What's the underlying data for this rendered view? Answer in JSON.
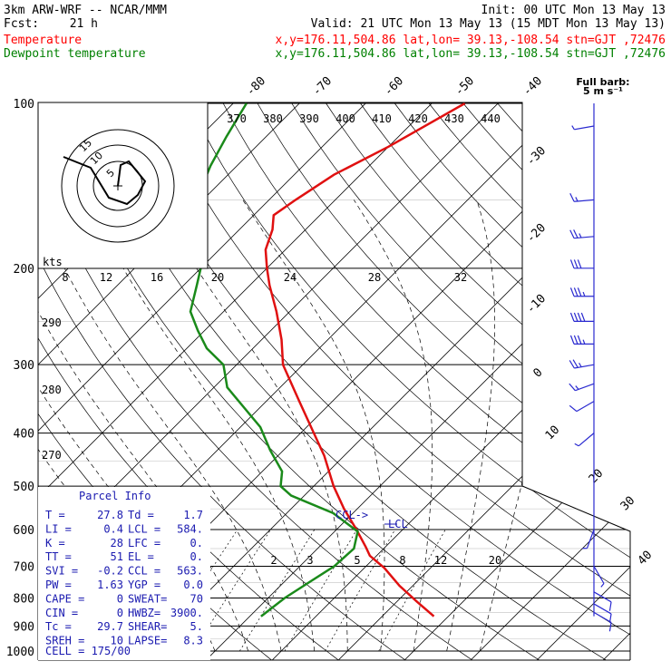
{
  "header": {
    "model": "3km ARW-WRF -- NCAR/MMM",
    "init": "Init: 00 UTC Mon 13 May 13",
    "fcst_label": "Fcst:",
    "fcst_value": "21 h",
    "valid": "Valid: 21 UTC Mon 13 May 13 (15 MDT Mon 13 May 13)",
    "series_lines": [
      {
        "name": "Temperature",
        "info": "x,y=176.11,504.86   lat,lon= 39.13,-108.54  stn=GJT ,72476",
        "color": "#ff0000"
      },
      {
        "name": "Dewpoint temperature",
        "info": "x,y=176.11,504.86   lat,lon= 39.13,-108.54  stn=GJT ,72476",
        "color": "#008000"
      }
    ]
  },
  "colors": {
    "temperature": "#e01010",
    "dewpoint": "#1a8a1a",
    "grid": "#000000",
    "barb": "#2a2ad0",
    "info": "#1a1ab0"
  },
  "chart_data": {
    "type": "line",
    "subtype": "skew-t log-p sounding",
    "yscale": "log",
    "pressure_levels": [
      100,
      200,
      300,
      400,
      500,
      600,
      700,
      800,
      900,
      1000
    ],
    "temp_labels": [
      "-80",
      "-70",
      "-60",
      "-50",
      "-40",
      "-30",
      "-20",
      "-10",
      "0",
      "10",
      "20",
      "30",
      "40"
    ],
    "theta_labels": [
      "370",
      "380",
      "390",
      "400",
      "410",
      "420",
      "430",
      "440"
    ],
    "mixing_ratio_labels": [
      "2",
      "3",
      "5",
      "8",
      "12",
      "20"
    ],
    "hodograph_rings": [
      "5",
      "10",
      "15"
    ],
    "speed_axis": {
      "unit": "kts",
      "ticks": [
        "8",
        "12",
        "16",
        "20",
        "24",
        "28",
        "32"
      ]
    },
    "height_labels": [
      "290",
      "280",
      "270"
    ],
    "barb_legend": "Full barb:",
    "barb_unit": "5 m s⁻¹",
    "annotations": {
      "ccl": "CCL->",
      "lcl": "LCL"
    },
    "series": [
      {
        "name": "Temperature",
        "color": "#e01010",
        "points": [
          [
            864,
            27.8
          ],
          [
            812,
            23
          ],
          [
            760,
            18
          ],
          [
            705,
            13
          ],
          [
            670,
            9
          ],
          [
            645,
            7
          ],
          [
            600,
            3
          ],
          [
            550,
            -2
          ],
          [
            500,
            -7
          ],
          [
            440,
            -13
          ],
          [
            400,
            -18
          ],
          [
            350,
            -25
          ],
          [
            300,
            -33
          ],
          [
            270,
            -37
          ],
          [
            240,
            -42
          ],
          [
            215,
            -47
          ],
          [
            200,
            -50
          ],
          [
            185,
            -53
          ],
          [
            170,
            -55
          ],
          [
            160,
            -57
          ],
          [
            150,
            -56
          ],
          [
            135,
            -54
          ],
          [
            120,
            -50
          ],
          [
            100,
            -45
          ]
        ]
      },
      {
        "name": "Dewpoint temperature",
        "color": "#1a8a1a",
        "points": [
          [
            864,
            1.7
          ],
          [
            800,
            2.5
          ],
          [
            750,
            3.8
          ],
          [
            700,
            5.2
          ],
          [
            650,
            5.5
          ],
          [
            605,
            3.5
          ],
          [
            560,
            -3
          ],
          [
            520,
            -12
          ],
          [
            500,
            -15
          ],
          [
            470,
            -17
          ],
          [
            430,
            -22
          ],
          [
            390,
            -27
          ],
          [
            330,
            -38
          ],
          [
            300,
            -42
          ],
          [
            280,
            -47
          ],
          [
            260,
            -51
          ],
          [
            240,
            -55
          ],
          [
            215,
            -58
          ],
          [
            200,
            -60
          ],
          [
            185,
            -63
          ],
          [
            165,
            -68
          ],
          [
            150,
            -71
          ],
          [
            130,
            -74
          ],
          [
            115,
            -76
          ],
          [
            100,
            -78
          ]
        ]
      }
    ]
  },
  "parcel_info": {
    "title": "Parcel Info",
    "rows": [
      [
        "T  =",
        "27.8",
        "Td =",
        "1.7"
      ],
      [
        "LI =",
        "0.4",
        "LCL =",
        "584."
      ],
      [
        "K  =",
        "28",
        "LFC =",
        "0."
      ],
      [
        "TT =",
        "51",
        "EL  =",
        "0."
      ],
      [
        "SVI =",
        "-0.2",
        "CCL =",
        "563."
      ],
      [
        "PW =",
        "1.63",
        "YGP =",
        "0.0"
      ],
      [
        "CAPE =",
        "0",
        "SWEAT=",
        "70"
      ],
      [
        "CIN  =",
        "0",
        "HWBZ=",
        "3900."
      ],
      [
        "Tc  =",
        "29.7",
        "SHEAR=",
        "5."
      ],
      [
        "SREH =",
        "10",
        "LAPSE=",
        "8.3"
      ]
    ],
    "cell": "CELL = 175/00"
  },
  "wind_barbs": [
    {
      "p": 110,
      "dir": 260,
      "spd": 5
    },
    {
      "p": 150,
      "dir": 265,
      "spd": 15
    },
    {
      "p": 175,
      "dir": 265,
      "spd": 25
    },
    {
      "p": 200,
      "dir": 270,
      "spd": 30
    },
    {
      "p": 225,
      "dir": 270,
      "spd": 35
    },
    {
      "p": 250,
      "dir": 270,
      "spd": 40
    },
    {
      "p": 275,
      "dir": 270,
      "spd": 35
    },
    {
      "p": 300,
      "dir": 260,
      "spd": 25
    },
    {
      "p": 325,
      "dir": 250,
      "spd": 15
    },
    {
      "p": 350,
      "dir": 240,
      "spd": 10
    },
    {
      "p": 400,
      "dir": 230,
      "spd": 5
    },
    {
      "p": 600,
      "dir": 200,
      "spd": 5
    },
    {
      "p": 700,
      "dir": 150,
      "spd": 5
    },
    {
      "p": 780,
      "dir": 120,
      "spd": 10
    },
    {
      "p": 820,
      "dir": 120,
      "spd": 10
    },
    {
      "p": 850,
      "dir": 120,
      "spd": 10
    }
  ]
}
